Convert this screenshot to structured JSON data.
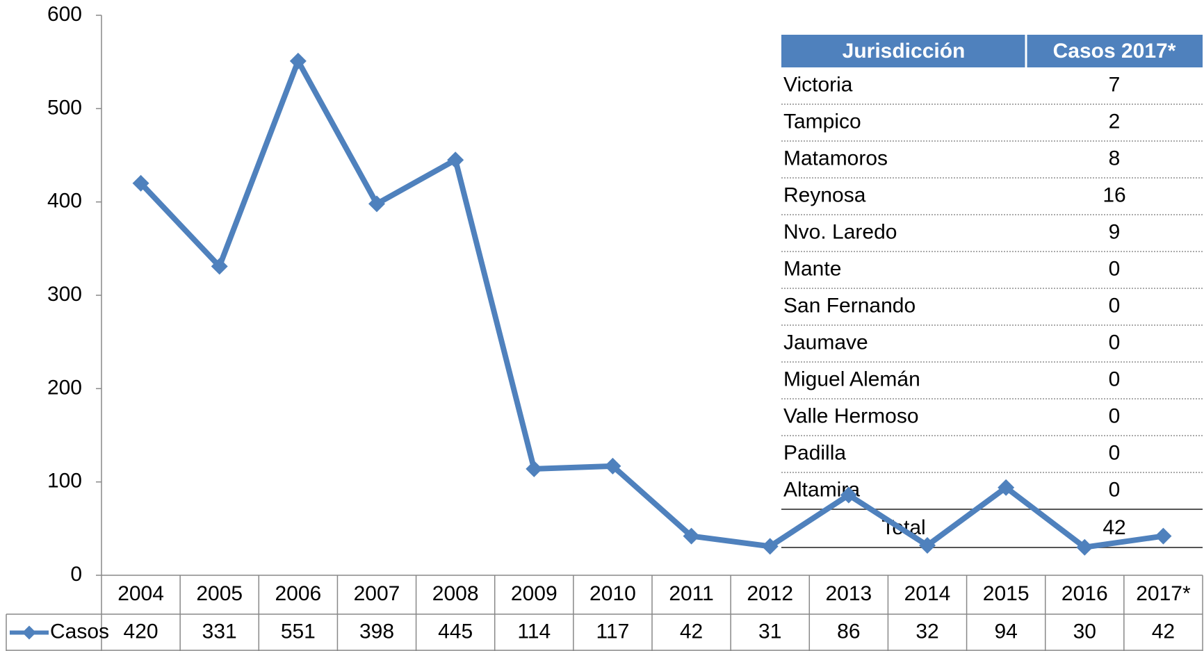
{
  "chart_data": {
    "type": "line",
    "categories": [
      "2004",
      "2005",
      "2006",
      "2007",
      "2008",
      "2009",
      "2010",
      "2011",
      "2012",
      "2013",
      "2014",
      "2015",
      "2016",
      "2017*"
    ],
    "series": [
      {
        "name": "Casos",
        "color": "#4f81bd",
        "values": [
          420,
          331,
          551,
          398,
          445,
          114,
          117,
          42,
          31,
          86,
          32,
          94,
          30,
          42
        ]
      }
    ],
    "ylim": [
      0,
      600
    ],
    "yticks": [
      0,
      100,
      200,
      300,
      400,
      500,
      600
    ],
    "grid": false
  },
  "table": {
    "header": [
      "Jurisdicción",
      "Casos 2017*"
    ],
    "rows": [
      [
        "Victoria",
        7
      ],
      [
        "Tampico",
        2
      ],
      [
        "Matamoros",
        8
      ],
      [
        "Reynosa",
        16
      ],
      [
        "Nvo. Laredo",
        9
      ],
      [
        "Mante",
        0
      ],
      [
        "San Fernando",
        0
      ],
      [
        "Jaumave",
        0
      ],
      [
        "Miguel Alemán",
        0
      ],
      [
        "Valle Hermoso",
        0
      ],
      [
        "Padilla",
        0
      ],
      [
        "Altamira",
        0
      ]
    ],
    "total": [
      "Total",
      42
    ]
  }
}
